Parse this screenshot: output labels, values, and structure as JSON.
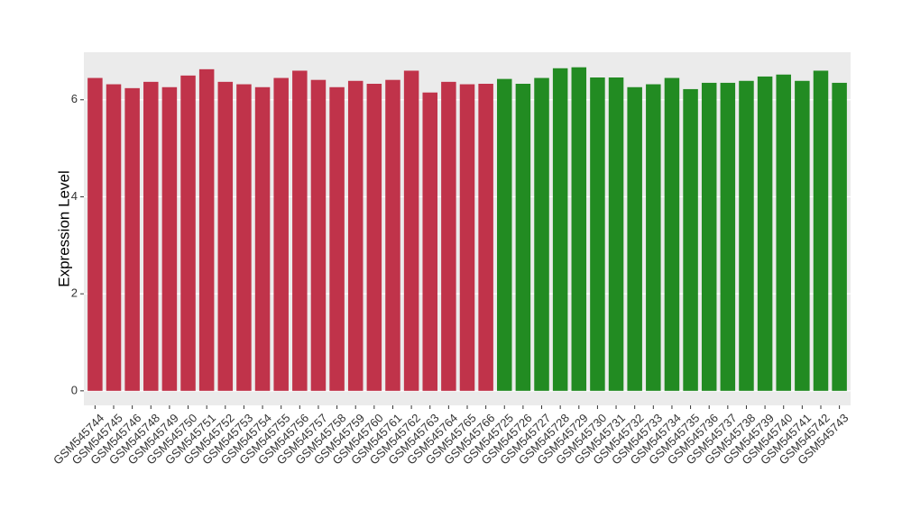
{
  "chart_data": {
    "type": "bar",
    "y_label": "Expression Level",
    "categories": [
      "GSM545744",
      "GSM545745",
      "GSM545746",
      "GSM545748",
      "GSM545749",
      "GSM545750",
      "GSM545751",
      "GSM545752",
      "GSM545753",
      "GSM545754",
      "GSM545755",
      "GSM545756",
      "GSM545757",
      "GSM545758",
      "GSM545759",
      "GSM545760",
      "GSM545761",
      "GSM545762",
      "GSM545763",
      "GSM545764",
      "GSM545765",
      "GSM545766",
      "GSM545725",
      "GSM545726",
      "GSM545727",
      "GSM545728",
      "GSM545729",
      "GSM545730",
      "GSM545731",
      "GSM545732",
      "GSM545733",
      "GSM545734",
      "GSM545735",
      "GSM545736",
      "GSM545737",
      "GSM545738",
      "GSM545739",
      "GSM545740",
      "GSM545741",
      "GSM545742",
      "GSM545743"
    ],
    "values": [
      6.45,
      6.32,
      6.24,
      6.37,
      6.26,
      6.5,
      6.63,
      6.37,
      6.32,
      6.26,
      6.45,
      6.6,
      6.41,
      6.26,
      6.39,
      6.33,
      6.41,
      6.6,
      6.15,
      6.37,
      6.32,
      6.33,
      6.43,
      6.33,
      6.45,
      6.65,
      6.67,
      6.46,
      6.46,
      6.26,
      6.32,
      6.45,
      6.22,
      6.35,
      6.35,
      6.39,
      6.48,
      6.52,
      6.39,
      6.6,
      6.35
    ],
    "colors": [
      "#c0334a",
      "#c0334a",
      "#c0334a",
      "#c0334a",
      "#c0334a",
      "#c0334a",
      "#c0334a",
      "#c0334a",
      "#c0334a",
      "#c0334a",
      "#c0334a",
      "#c0334a",
      "#c0334a",
      "#c0334a",
      "#c0334a",
      "#c0334a",
      "#c0334a",
      "#c0334a",
      "#c0334a",
      "#c0334a",
      "#c0334a",
      "#c0334a",
      "#228b22",
      "#228b22",
      "#228b22",
      "#228b22",
      "#228b22",
      "#228b22",
      "#228b22",
      "#228b22",
      "#228b22",
      "#228b22",
      "#228b22",
      "#228b22",
      "#228b22",
      "#228b22",
      "#228b22",
      "#228b22",
      "#228b22",
      "#228b22",
      "#228b22"
    ],
    "ylim": [
      -0.3,
      6.98
    ],
    "yticks": [
      0,
      2,
      4,
      6
    ],
    "grid": true
  }
}
